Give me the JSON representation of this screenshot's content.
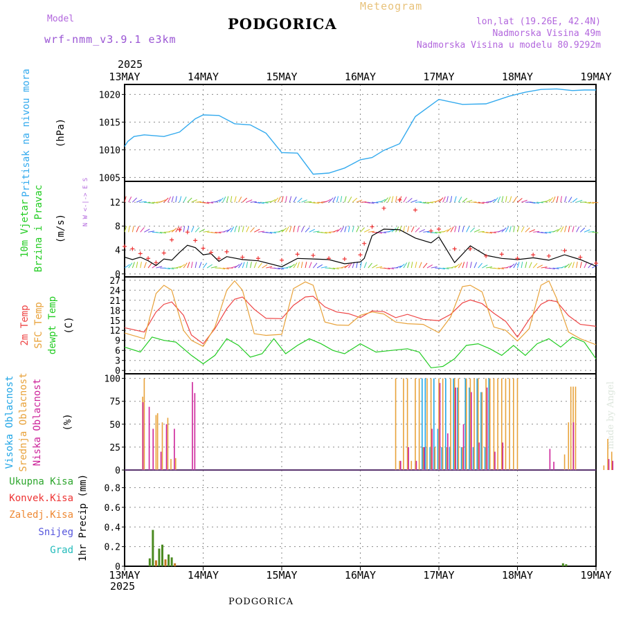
{
  "header": {
    "model_label": "Model",
    "model_name": "wrf-nmm_v3.9.1  e3km",
    "station_title": "PODGORICA",
    "meteogram_label": "Meteogram",
    "coords": "lon,lat (19.26E, 42.4N)",
    "elevation": "Nadmorska Visina 49m",
    "model_elevation": "Nadmorska Visina u modelu 80.9292m",
    "year_top": "2025",
    "year_bottom": "2025",
    "footer_station": "PODGORICA",
    "watermark": "made by Angel"
  },
  "colors": {
    "pressure": "#33aaee",
    "wind_speed": "#000000",
    "gust_marker": "#ee3333",
    "t2m": "#ee4444",
    "tsfc": "#e8a23a",
    "dewpt": "#22cc22",
    "cloud_high": "#22a6e6",
    "cloud_mid": "#e8a23a",
    "cloud_low": "#cc2299",
    "precip_total": "#2da62d",
    "precip_conv": "#ee3333",
    "precip_frozen": "#ee8833",
    "precip_snow": "#5555dd",
    "precip_grad": "#22bbbb"
  },
  "chart_data": [
    {
      "type": "line",
      "panel": "pressure",
      "ylabel_side": "Pritisak na nivou mora",
      "unit": "(hPa)",
      "x_ticks": [
        "13MAY",
        "14MAY",
        "15MAY",
        "16MAY",
        "17MAY",
        "18MAY",
        "19MAY"
      ],
      "ylim": [
        1004.3,
        1021.8
      ],
      "yticks": [
        1005,
        1010,
        1015,
        1020
      ],
      "x_days": [
        0,
        0.04,
        0.12,
        0.25,
        0.5,
        0.7,
        0.9,
        1.0,
        1.2,
        1.4,
        1.6,
        1.8,
        2.0,
        2.2,
        2.4,
        2.6,
        2.8,
        3.0,
        3.15,
        3.3,
        3.5,
        3.7,
        4.0,
        4.3,
        4.6,
        4.9,
        5.1,
        5.3,
        5.5,
        5.7,
        5.85,
        5.95,
        6.0
      ],
      "values": [
        1010.6,
        1011.5,
        1012.4,
        1012.7,
        1012.4,
        1013.2,
        1015.6,
        1016.3,
        1016.2,
        1014.7,
        1014.5,
        1013.0,
        1009.5,
        1009.4,
        1005.6,
        1005.8,
        1006.7,
        1008.2,
        1008.6,
        1009.9,
        1011.1,
        1016.0,
        1019.1,
        1018.2,
        1018.3,
        1019.7,
        1020.4,
        1020.9,
        1021.0,
        1020.7,
        1020.8,
        1020.8,
        1020.8
      ]
    },
    {
      "type": "line",
      "panel": "wind",
      "ylabel_side": [
        "10m Vjetar",
        "Brzina i Pravac"
      ],
      "unit": "(m/s)",
      "compass": "N  W <-|-> E  S",
      "ylim": [
        -0.5,
        15.5
      ],
      "yticks": [
        0,
        4,
        8,
        12
      ],
      "x_days": [
        0.0,
        0.1,
        0.2,
        0.3,
        0.4,
        0.5,
        0.6,
        0.7,
        0.8,
        0.9,
        1.0,
        1.1,
        1.2,
        1.3,
        1.5,
        1.7,
        2.0,
        2.2,
        2.4,
        2.6,
        2.8,
        3.0,
        3.05,
        3.15,
        3.3,
        3.5,
        3.7,
        3.9,
        4.0,
        4.2,
        4.4,
        4.6,
        4.8,
        5.0,
        5.2,
        5.4,
        5.6,
        5.8,
        6.0
      ],
      "speed": [
        2.8,
        2.4,
        2.8,
        2.2,
        1.4,
        2.5,
        2.3,
        3.6,
        4.8,
        4.4,
        3.2,
        3.4,
        2.1,
        2.9,
        2.4,
        2.2,
        1.2,
        2.6,
        2.5,
        2.4,
        1.7,
        2.0,
        2.6,
        6.4,
        7.5,
        7.4,
        6.0,
        5.2,
        6.2,
        1.9,
        4.7,
        3.1,
        2.6,
        2.4,
        2.7,
        2.3,
        3.2,
        2.4,
        1.3
      ],
      "gust": [
        4.6,
        4.2,
        3.4,
        2.6,
        1.9,
        3.5,
        5.7,
        7.4,
        7.0,
        5.6,
        4.3,
        3.6,
        2.6,
        3.7,
        2.8,
        2.6,
        2.3,
        3.3,
        3.1,
        2.6,
        2.5,
        3.2,
        5.1,
        7.9,
        11.0,
        12.4,
        10.7,
        7.2,
        7.5,
        4.2,
        4.2,
        3.0,
        3.3,
        2.6,
        3.2,
        3.0,
        3.9,
        2.8,
        1.8
      ],
      "vector_rows": [
        1,
        7,
        12
      ]
    },
    {
      "type": "line",
      "panel": "temperature",
      "ylabel_side": [
        "2m Temp",
        "SFC Temp",
        "dewpt Temp"
      ],
      "unit": "(C)",
      "ylim": [
        -1,
        28
      ],
      "yticks": [
        0,
        3,
        6,
        9,
        12,
        15,
        18,
        21,
        24,
        27
      ],
      "series": [
        {
          "name": "2m Temp",
          "x_days": [
            0,
            0.25,
            0.4,
            0.5,
            0.6,
            0.75,
            0.85,
            1.0,
            1.15,
            1.3,
            1.4,
            1.5,
            1.65,
            1.8,
            2.0,
            2.15,
            2.3,
            2.4,
            2.55,
            2.7,
            2.85,
            3.0,
            3.15,
            3.3,
            3.45,
            3.6,
            3.8,
            4.0,
            4.15,
            4.3,
            4.4,
            4.55,
            4.7,
            4.85,
            5.0,
            5.15,
            5.3,
            5.4,
            5.5,
            5.65,
            5.8,
            6.0
          ],
          "values": [
            12.8,
            11.5,
            17.5,
            19.8,
            20.5,
            16.5,
            10.6,
            8.0,
            12.5,
            18.5,
            21.3,
            22.0,
            18.3,
            15.6,
            15.5,
            19.5,
            22.0,
            22.2,
            19.0,
            17.5,
            17.0,
            15.8,
            17.8,
            17.6,
            15.8,
            16.8,
            15.3,
            14.9,
            16.8,
            20.2,
            21.1,
            20.0,
            17.1,
            14.7,
            10.0,
            15.3,
            19.8,
            21.0,
            20.6,
            16.4,
            13.8,
            13.2
          ]
        },
        {
          "name": "SFC Temp",
          "x_days": [
            0,
            0.25,
            0.4,
            0.5,
            0.6,
            0.75,
            0.85,
            1.0,
            1.15,
            1.3,
            1.4,
            1.5,
            1.65,
            1.8,
            2.0,
            2.15,
            2.3,
            2.4,
            2.55,
            2.7,
            2.85,
            3.0,
            3.15,
            3.3,
            3.45,
            3.6,
            3.8,
            4.0,
            4.15,
            4.3,
            4.4,
            4.55,
            4.7,
            4.85,
            5.0,
            5.15,
            5.3,
            5.4,
            5.5,
            5.65,
            5.8,
            6.0
          ],
          "values": [
            11.2,
            9.5,
            23.0,
            25.5,
            24.0,
            12.0,
            9.0,
            7.2,
            13.0,
            24.0,
            26.8,
            24.0,
            11.0,
            10.5,
            10.8,
            24.5,
            26.5,
            25.5,
            14.5,
            13.6,
            13.5,
            16.5,
            17.5,
            16.9,
            14.5,
            14.0,
            13.8,
            11.3,
            16.0,
            25.1,
            25.5,
            23.5,
            13.0,
            12.0,
            8.8,
            12.5,
            25.5,
            26.8,
            21.5,
            11.5,
            9.5,
            7.7
          ]
        },
        {
          "name": "dewpt Temp",
          "x_days": [
            0,
            0.2,
            0.35,
            0.5,
            0.65,
            0.85,
            1.0,
            1.15,
            1.3,
            1.45,
            1.6,
            1.75,
            1.9,
            2.05,
            2.2,
            2.35,
            2.5,
            2.65,
            2.8,
            3.0,
            3.2,
            3.4,
            3.6,
            3.75,
            3.9,
            4.05,
            4.2,
            4.35,
            4.5,
            4.65,
            4.8,
            4.95,
            5.1,
            5.25,
            5.4,
            5.55,
            5.7,
            5.85,
            6.0
          ],
          "values": [
            7.0,
            5.5,
            10.0,
            9.0,
            8.5,
            4.5,
            2.0,
            4.5,
            9.5,
            7.5,
            4.0,
            5.0,
            9.5,
            5.0,
            7.5,
            9.5,
            8.0,
            6.0,
            5.0,
            8.0,
            5.5,
            6.0,
            6.5,
            5.5,
            0.8,
            1.2,
            3.5,
            7.5,
            8.0,
            6.5,
            4.5,
            7.5,
            4.5,
            8.0,
            9.5,
            7.0,
            10.0,
            8.5,
            3.5
          ]
        }
      ]
    },
    {
      "type": "bar",
      "panel": "cloud",
      "ylabel_side": [
        "Visoka Oblacnost",
        "Srednja Oblacnost",
        "Niska  Oblacnost"
      ],
      "unit": "(%)",
      "ylim": [
        0,
        105
      ],
      "yticks": [
        0,
        25,
        50,
        75,
        100
      ],
      "series": [
        {
          "name": "Visoka Oblacnost",
          "x_days": [
            3.8,
            3.82,
            3.84,
            3.86,
            3.9,
            3.95,
            4.0,
            4.05,
            4.1,
            4.15,
            4.2,
            4.25,
            4.3,
            4.35,
            4.4,
            4.45,
            4.5,
            4.55,
            4.6,
            4.65
          ],
          "values": [
            100,
            25,
            100,
            25,
            25,
            100,
            45,
            25,
            100,
            25,
            100,
            90,
            25,
            100,
            90,
            25,
            100,
            85,
            25,
            100
          ]
        },
        {
          "name": "Srednja Oblacnost",
          "x_days": [
            0.23,
            0.25,
            0.4,
            0.42,
            0.48,
            0.55,
            0.59,
            0.65,
            3.45,
            3.5,
            3.55,
            3.6,
            3.65,
            3.7,
            3.75,
            3.8,
            3.85,
            3.9,
            3.95,
            4.0,
            4.05,
            4.1,
            4.15,
            4.2,
            4.25,
            4.3,
            4.35,
            4.4,
            4.45,
            4.5,
            4.55,
            4.6,
            4.65,
            4.7,
            4.75,
            4.8,
            4.85,
            4.9,
            4.95,
            5.0,
            5.6,
            5.65,
            5.68,
            5.71,
            5.74,
            6.1,
            6.15,
            6.2
          ],
          "values": [
            80,
            100,
            60,
            62,
            52,
            57,
            12,
            13,
            100,
            10,
            100,
            100,
            10,
            100,
            100,
            25,
            100,
            100,
            25,
            100,
            100,
            25,
            100,
            100,
            100,
            25,
            100,
            100,
            100,
            100,
            85,
            100,
            100,
            100,
            100,
            100,
            100,
            100,
            100,
            100,
            17,
            52,
            91,
            91,
            91,
            5,
            34,
            20
          ]
        },
        {
          "name": "Niska Oblacnost",
          "x_days": [
            0.22,
            0.3,
            0.35,
            0.45,
            0.52,
            0.62,
            0.85,
            0.88,
            3.5,
            3.6,
            3.7,
            3.8,
            3.9,
            4.0,
            4.1,
            4.2,
            4.3,
            4.4,
            4.5,
            4.6,
            4.7,
            4.8,
            5.4,
            5.45,
            5.7,
            6.15,
            6.2
          ],
          "values": [
            74,
            69,
            45,
            20,
            50,
            45,
            96,
            84,
            10,
            25,
            10,
            25,
            45,
            95,
            40,
            90,
            50,
            85,
            30,
            90,
            20,
            30,
            23,
            9,
            52,
            12,
            10
          ]
        }
      ]
    },
    {
      "type": "bar",
      "panel": "precip",
      "ylabel_side": "1hr Precip (mm)",
      "legend": [
        "Ukupna Kisa",
        "Konvek.Kisa",
        "Zaledj.Kisa",
        "Snijeg",
        "Grad"
      ],
      "ylim": [
        0,
        0.98
      ],
      "yticks": [
        0,
        0.2,
        0.4,
        0.6,
        0.8
      ],
      "x_days": [
        0.32,
        0.36,
        0.4,
        0.44,
        0.48,
        0.52,
        0.56,
        0.6,
        0.64,
        5.58,
        5.62
      ],
      "values": [
        0.08,
        0.37,
        0.06,
        0.18,
        0.22,
        0.07,
        0.12,
        0.09,
        0.03,
        0.03,
        0.02
      ]
    }
  ]
}
